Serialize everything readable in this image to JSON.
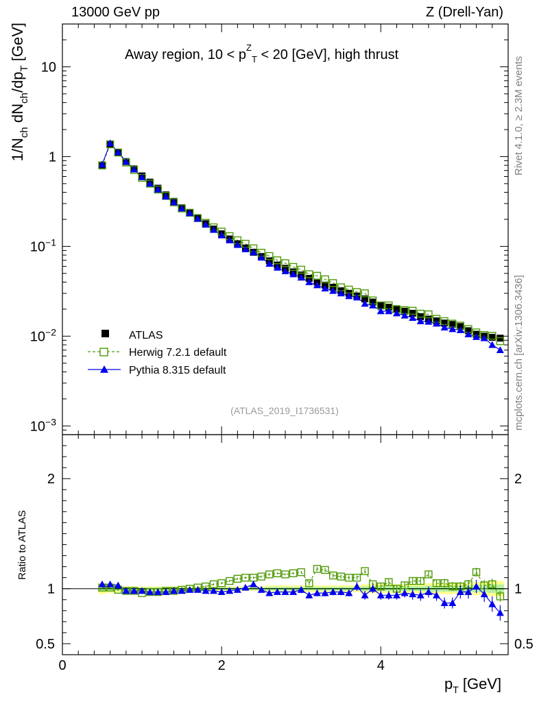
{
  "header": {
    "energy_label": "13000 GeV pp",
    "process_label": "Z (Drell-Yan)"
  },
  "side_labels": {
    "rivet": "Rivet 4.1.0, ≥ 2.3M events",
    "mcplots": "mcplots.cern.ch [arXiv:1306.3436]"
  },
  "colors": {
    "atlas": "#000000",
    "herwig": "#4e9a06",
    "pythia": "#0000ee",
    "band_yellow": "#ffff90",
    "band_green": "#b6f0a0",
    "ratio_line": "#00aa00"
  },
  "chart_data": {
    "type": "scatter",
    "title_main": "Away region, 10 < p",
    "title_sub": "T",
    "title_sup": "Z",
    "title_tail": " < 20 [GeV], high thrust",
    "watermark": "(ATLAS_2019_I1736531)",
    "xlabel_main": "p",
    "xlabel_sub": "T",
    "xlabel_tail": " [GeV]",
    "ylabel": "1/N_ch dN_ch/dp_T [GeV]",
    "ylabel_parts": [
      "1/N",
      "ch",
      " dN",
      "ch",
      "/dp",
      "T",
      " [GeV]"
    ],
    "ratio_ylabel": "Ratio to ATLAS",
    "xlim": [
      0,
      5.6
    ],
    "ylim": [
      0.0008,
      30
    ],
    "ratio_ylim": [
      0.4,
      2.4
    ],
    "x_ticks": [
      {
        "v": 0,
        "label": "0"
      },
      {
        "v": 2,
        "label": "2"
      },
      {
        "v": 4,
        "label": "4"
      }
    ],
    "y_ticks_main": [
      {
        "v": 10,
        "label": "10",
        "sup": ""
      },
      {
        "v": 1,
        "label": "1",
        "sup": ""
      },
      {
        "v": 0.1,
        "label": "10",
        "sup": "−1"
      },
      {
        "v": 0.01,
        "label": "10",
        "sup": "−2"
      },
      {
        "v": 0.001,
        "label": "10",
        "sup": "−3"
      }
    ],
    "y_ticks_ratio": [
      {
        "v": 0.5,
        "label": "0.5"
      },
      {
        "v": 1,
        "label": "1"
      },
      {
        "v": 2,
        "label": "2"
      }
    ],
    "legend": {
      "position": "lower-left",
      "entries": [
        "ATLAS",
        "Herwig 7.2.1 default",
        "Pythia 8.315 default"
      ]
    },
    "x": [
      0.5,
      0.6,
      0.7,
      0.8,
      0.9,
      1.0,
      1.1,
      1.2,
      1.3,
      1.4,
      1.5,
      1.6,
      1.7,
      1.8,
      1.9,
      2.0,
      2.1,
      2.2,
      2.3,
      2.4,
      2.5,
      2.6,
      2.7,
      2.8,
      2.9,
      3.0,
      3.1,
      3.2,
      3.3,
      3.4,
      3.5,
      3.6,
      3.7,
      3.8,
      3.9,
      4.0,
      4.1,
      4.2,
      4.3,
      4.4,
      4.5,
      4.6,
      4.7,
      4.8,
      4.9,
      5.0,
      5.1,
      5.2,
      5.3,
      5.4,
      5.5
    ],
    "series": [
      {
        "name": "ATLAS",
        "marker": "filled-square",
        "values": [
          0.79,
          1.36,
          1.12,
          0.88,
          0.73,
          0.61,
          0.52,
          0.445,
          0.375,
          0.317,
          0.27,
          0.237,
          0.205,
          0.179,
          0.156,
          0.138,
          0.121,
          0.107,
          0.096,
          0.086,
          0.077,
          0.069,
          0.062,
          0.057,
          0.052,
          0.048,
          0.044,
          0.04,
          0.037,
          0.035,
          0.032,
          0.03,
          0.028,
          0.026,
          0.024,
          0.022,
          0.021,
          0.02,
          0.019,
          0.018,
          0.0165,
          0.0155,
          0.0148,
          0.014,
          0.0135,
          0.0128,
          0.0115,
          0.0105,
          0.01,
          0.0097,
          0.0095
        ]
      },
      {
        "name": "Herwig 7.2.1 default",
        "marker": "open-square",
        "values": [
          0.8,
          1.37,
          1.11,
          0.86,
          0.71,
          0.58,
          0.5,
          0.43,
          0.365,
          0.31,
          0.265,
          0.237,
          0.207,
          0.183,
          0.163,
          0.146,
          0.13,
          0.117,
          0.107,
          0.095,
          0.085,
          0.078,
          0.07,
          0.065,
          0.059,
          0.055,
          0.049,
          0.047,
          0.043,
          0.039,
          0.035,
          0.033,
          0.031,
          0.03,
          0.025,
          0.022,
          0.022,
          0.02,
          0.0195,
          0.0192,
          0.0178,
          0.0175,
          0.0156,
          0.0147,
          0.0138,
          0.0131,
          0.012,
          0.011,
          0.0103,
          0.0101,
          0.0088
        ]
      },
      {
        "name": "Pythia 8.315 default",
        "marker": "filled-triangle",
        "values": [
          0.82,
          1.41,
          1.12,
          0.88,
          0.72,
          0.59,
          0.5,
          0.43,
          0.36,
          0.31,
          0.265,
          0.235,
          0.203,
          0.175,
          0.153,
          0.133,
          0.117,
          0.104,
          0.093,
          0.086,
          0.075,
          0.064,
          0.058,
          0.053,
          0.049,
          0.045,
          0.04,
          0.037,
          0.034,
          0.032,
          0.03,
          0.028,
          0.027,
          0.023,
          0.022,
          0.019,
          0.019,
          0.018,
          0.017,
          0.016,
          0.0147,
          0.0145,
          0.0138,
          0.0125,
          0.012,
          0.0117,
          0.0105,
          0.0098,
          0.0095,
          0.008,
          0.007
        ]
      }
    ],
    "ratio": {
      "band_width": [
        0.05,
        0.04,
        0.03,
        0.02,
        0.02,
        0.02,
        0.02,
        0.02,
        0.02,
        0.02,
        0.02,
        0.02,
        0.02,
        0.02,
        0.02,
        0.02,
        0.02,
        0.02,
        0.02,
        0.02,
        0.02,
        0.03,
        0.03,
        0.03,
        0.03,
        0.03,
        0.03,
        0.03,
        0.03,
        0.03,
        0.03,
        0.03,
        0.03,
        0.04,
        0.04,
        0.04,
        0.04,
        0.04,
        0.04,
        0.04,
        0.04,
        0.05,
        0.05,
        0.05,
        0.05,
        0.05,
        0.05,
        0.06,
        0.06,
        0.07,
        0.07
      ],
      "herwig": [
        1.01,
        1.01,
        0.99,
        0.98,
        0.98,
        0.96,
        0.97,
        0.97,
        0.98,
        0.98,
        0.99,
        1.0,
        1.01,
        1.02,
        1.04,
        1.05,
        1.07,
        1.09,
        1.1,
        1.1,
        1.11,
        1.13,
        1.14,
        1.13,
        1.14,
        1.15,
        1.05,
        1.18,
        1.17,
        1.12,
        1.11,
        1.1,
        1.1,
        1.16,
        1.04,
        1.02,
        1.06,
        1.0,
        1.03,
        1.07,
        1.07,
        1.13,
        1.05,
        1.05,
        1.02,
        1.02,
        1.04,
        1.15,
        1.03,
        1.04,
        0.93
      ],
      "herwig_err": [
        0.01,
        0.01,
        0.01,
        0.01,
        0.01,
        0.01,
        0.01,
        0.01,
        0.01,
        0.01,
        0.01,
        0.01,
        0.01,
        0.01,
        0.01,
        0.01,
        0.01,
        0.01,
        0.01,
        0.01,
        0.01,
        0.01,
        0.01,
        0.01,
        0.01,
        0.01,
        0.02,
        0.02,
        0.02,
        0.02,
        0.02,
        0.02,
        0.02,
        0.02,
        0.02,
        0.03,
        0.03,
        0.03,
        0.03,
        0.03,
        0.03,
        0.03,
        0.03,
        0.04,
        0.04,
        0.04,
        0.04,
        0.04,
        0.05,
        0.05,
        0.05
      ],
      "pythia": [
        1.04,
        1.04,
        1.03,
        0.98,
        0.98,
        0.98,
        0.97,
        0.97,
        0.97,
        0.98,
        0.98,
        0.99,
        0.99,
        0.98,
        0.98,
        0.97,
        0.98,
        0.99,
        1.01,
        1.04,
        0.99,
        0.96,
        0.97,
        0.97,
        0.97,
        0.99,
        0.94,
        0.96,
        0.96,
        0.97,
        0.97,
        0.96,
        1.02,
        0.94,
        1.0,
        0.94,
        0.94,
        0.94,
        0.96,
        0.95,
        0.94,
        0.97,
        0.94,
        0.87,
        0.87,
        0.97,
        0.97,
        1.02,
        0.95,
        0.86,
        0.78
      ],
      "pythia_err": [
        0.01,
        0.01,
        0.01,
        0.01,
        0.01,
        0.01,
        0.01,
        0.01,
        0.01,
        0.01,
        0.01,
        0.01,
        0.01,
        0.01,
        0.01,
        0.01,
        0.01,
        0.01,
        0.02,
        0.02,
        0.02,
        0.02,
        0.02,
        0.02,
        0.02,
        0.03,
        0.03,
        0.03,
        0.03,
        0.03,
        0.03,
        0.03,
        0.04,
        0.04,
        0.04,
        0.04,
        0.04,
        0.04,
        0.04,
        0.05,
        0.05,
        0.05,
        0.05,
        0.05,
        0.05,
        0.06,
        0.06,
        0.06,
        0.07,
        0.07,
        0.07
      ]
    }
  }
}
